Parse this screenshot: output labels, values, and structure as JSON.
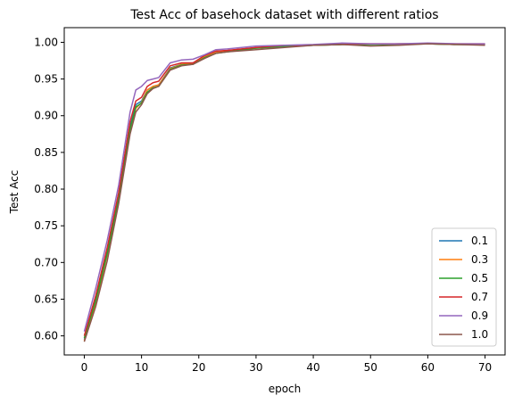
{
  "chart_data": {
    "type": "line",
    "title": "Test Acc of basehock dataset with different ratios",
    "xlabel": "epoch",
    "ylabel": "Test Acc",
    "xlim": [
      -3.5,
      73.5
    ],
    "ylim": [
      0.574,
      1.02
    ],
    "xticks": [
      0,
      10,
      20,
      30,
      40,
      50,
      60,
      70
    ],
    "xtick_labels": [
      "0",
      "10",
      "20",
      "30",
      "40",
      "50",
      "60",
      "70"
    ],
    "yticks": [
      0.6,
      0.65,
      0.7,
      0.75,
      0.8,
      0.85,
      0.9,
      0.95,
      1.0
    ],
    "ytick_labels": [
      "0.60",
      "0.65",
      "0.70",
      "0.75",
      "0.80",
      "0.85",
      "0.90",
      "0.95",
      "1.00"
    ],
    "grid": false,
    "legend": "bottom-right",
    "x": [
      0,
      2,
      4,
      6,
      8,
      9,
      10,
      11,
      12,
      13,
      15,
      17,
      19,
      21,
      23,
      25,
      30,
      35,
      40,
      45,
      50,
      55,
      60,
      65,
      70
    ],
    "series": [
      {
        "name": "0.1",
        "color": "#1f77b4",
        "values": [
          0.595,
          0.65,
          0.715,
          0.79,
          0.885,
          0.915,
          0.92,
          0.935,
          0.94,
          0.942,
          0.965,
          0.97,
          0.972,
          0.98,
          0.986,
          0.988,
          0.992,
          0.994,
          0.996,
          0.997,
          0.997,
          0.998,
          0.998,
          0.997,
          0.997
        ]
      },
      {
        "name": "0.3",
        "color": "#ff7f0e",
        "values": [
          0.593,
          0.645,
          0.71,
          0.785,
          0.88,
          0.91,
          0.918,
          0.935,
          0.94,
          0.942,
          0.964,
          0.97,
          0.971,
          0.98,
          0.986,
          0.988,
          0.992,
          0.995,
          0.996,
          0.997,
          0.997,
          0.998,
          0.998,
          0.997,
          0.997
        ]
      },
      {
        "name": "0.5",
        "color": "#2ca02c",
        "values": [
          0.597,
          0.648,
          0.712,
          0.787,
          0.882,
          0.912,
          0.917,
          0.932,
          0.938,
          0.94,
          0.963,
          0.969,
          0.97,
          0.979,
          0.985,
          0.987,
          0.992,
          0.995,
          0.996,
          0.997,
          0.997,
          0.997,
          0.998,
          0.997,
          0.997
        ]
      },
      {
        "name": "0.7",
        "color": "#d62728",
        "values": [
          0.6,
          0.655,
          0.72,
          0.795,
          0.892,
          0.92,
          0.925,
          0.94,
          0.945,
          0.947,
          0.968,
          0.972,
          0.972,
          0.982,
          0.988,
          0.989,
          0.993,
          0.996,
          0.996,
          0.998,
          0.998,
          0.998,
          0.998,
          0.998,
          0.998
        ]
      },
      {
        "name": "0.9",
        "color": "#9467bd",
        "values": [
          0.606,
          0.665,
          0.73,
          0.805,
          0.905,
          0.935,
          0.94,
          0.948,
          0.95,
          0.952,
          0.972,
          0.976,
          0.977,
          0.983,
          0.99,
          0.991,
          0.995,
          0.996,
          0.997,
          0.999,
          0.998,
          0.998,
          0.999,
          0.998,
          0.998
        ]
      },
      {
        "name": "1.0",
        "color": "#8c564b",
        "values": [
          0.592,
          0.64,
          0.702,
          0.78,
          0.875,
          0.905,
          0.915,
          0.93,
          0.937,
          0.94,
          0.962,
          0.968,
          0.97,
          0.978,
          0.985,
          0.987,
          0.99,
          0.993,
          0.996,
          0.997,
          0.995,
          0.996,
          0.998,
          0.997,
          0.996
        ]
      }
    ]
  }
}
